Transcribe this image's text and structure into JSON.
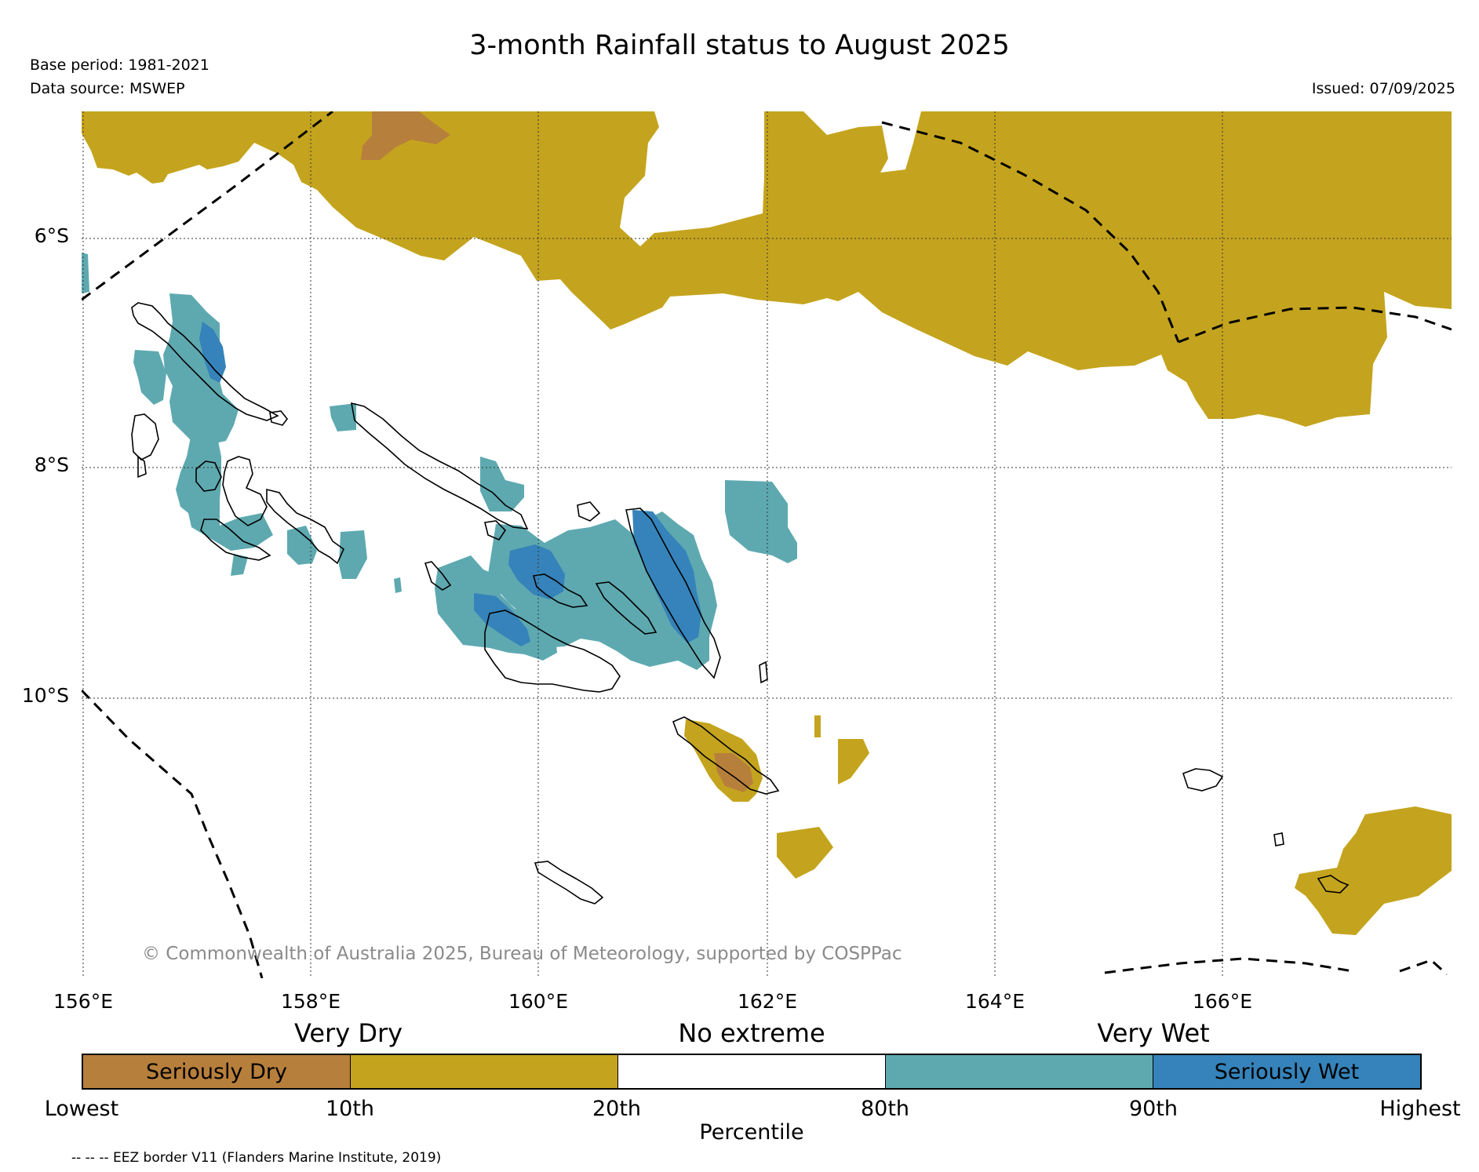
{
  "title": "3-month Rainfall status to August 2025",
  "base_period": "Base period: 1981-2021",
  "data_source": "Data source: MSWEP",
  "issued": "Issued: 07/09/2025",
  "copyright": "© Commonwealth of Australia 2025, Bureau of Meteorology, supported by COSPPac",
  "lat_labels": [
    "6°S",
    "8°S",
    "10°S"
  ],
  "lon_labels": [
    "156°E",
    "158°E",
    "160°E",
    "162°E",
    "164°E",
    "166°E"
  ],
  "legend": {
    "categories": [
      "Very Dry",
      "No extreme",
      "Very Wet"
    ],
    "segments": [
      {
        "label": "Seriously Dry",
        "color": "#b77f3c"
      },
      {
        "label": "",
        "color": "#c4a41e"
      },
      {
        "label": "",
        "color": "#ffffff"
      },
      {
        "label": "",
        "color": "#5ea9b0"
      },
      {
        "label": "Seriously Wet",
        "color": "#3583ba"
      }
    ],
    "ticks": [
      "Lowest",
      "10th",
      "20th",
      "80th",
      "90th",
      "Highest"
    ],
    "axis_label": "Percentile"
  },
  "eez_note": "-- -- -- EEZ border V11 (Flanders Marine Institute, 2019)"
}
